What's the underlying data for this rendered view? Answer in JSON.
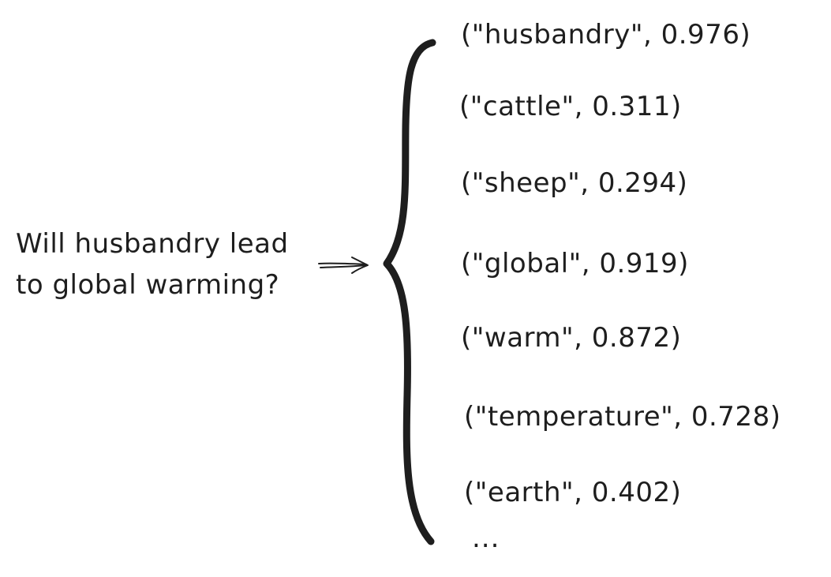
{
  "question": {
    "line1": "Will husbandry lead",
    "line2": "to global warming?"
  },
  "keywords": [
    {
      "text": "(\"husbandry\", 0.976)"
    },
    {
      "text": "(\"cattle\", 0.311)"
    },
    {
      "text": "(\"sheep\", 0.294)"
    },
    {
      "text": "(\"global\", 0.919)"
    },
    {
      "text": "(\"warm\", 0.872)"
    },
    {
      "text": "(\"temperature\", 0.728)"
    },
    {
      "text": "(\"earth\", 0.402)"
    }
  ],
  "ellipsis": "..."
}
